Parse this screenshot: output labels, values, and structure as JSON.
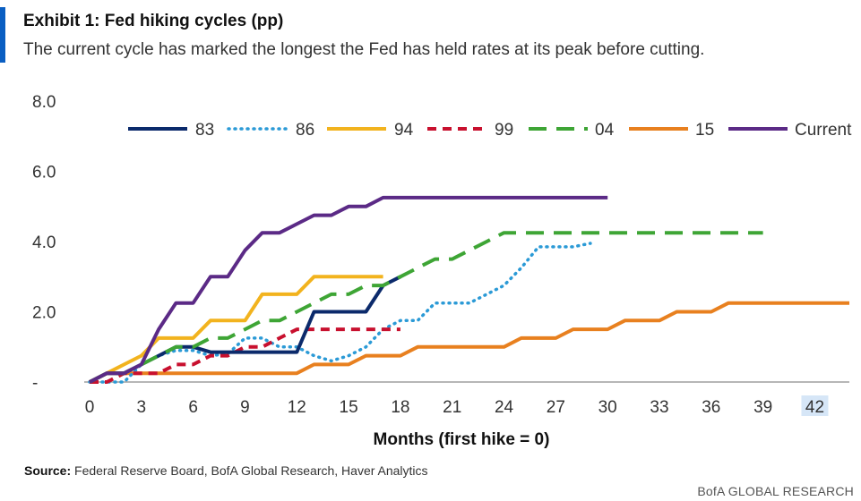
{
  "header": {
    "title": "Exhibit 1: Fed hiking cycles (pp)",
    "subtitle": "The current cycle has marked the longest the Fed has held rates at its peak before cutting."
  },
  "footer": {
    "source_label": "Source:",
    "source_text": " Federal Reserve Board, BofA Global Research, Haver Analytics",
    "brand": "BofA GLOBAL RESEARCH"
  },
  "colors": {
    "accent": "#0a5ec2",
    "highlight": "#d6e6f7"
  },
  "chart_data": {
    "type": "line",
    "title": "Exhibit 1: Fed hiking cycles (pp)",
    "xlabel": "Months  (first hike = 0)",
    "ylabel": "",
    "xlim": [
      0,
      44
    ],
    "ylim": [
      0,
      8
    ],
    "x_ticks": [
      0,
      3,
      6,
      9,
      12,
      15,
      18,
      21,
      24,
      27,
      30,
      33,
      36,
      39,
      42
    ],
    "x_tick_labels": [
      "0",
      "3",
      "6",
      "9",
      "12",
      "15",
      "18",
      "21",
      "24",
      "27",
      "30",
      "33",
      "36",
      "39",
      "42"
    ],
    "highlighted_x_tick": "42",
    "y_ticks": [
      0,
      2,
      4,
      6,
      8
    ],
    "y_tick_labels": [
      "-",
      "2.0",
      "4.0",
      "6.0",
      "8.0"
    ],
    "grid": false,
    "legend_position": "top",
    "series": [
      {
        "name": "83",
        "color": "#0b2a6b",
        "dash": "solid",
        "points": [
          [
            0,
            0
          ],
          [
            1,
            0.25
          ],
          [
            2,
            0.25
          ],
          [
            3,
            0.5
          ],
          [
            4,
            0.75
          ],
          [
            5,
            1.0
          ],
          [
            6,
            1.0
          ],
          [
            7,
            0.85
          ],
          [
            8,
            0.85
          ],
          [
            9,
            0.85
          ],
          [
            10,
            0.85
          ],
          [
            11,
            0.85
          ],
          [
            12,
            0.85
          ],
          [
            13,
            2.0
          ],
          [
            14,
            2.0
          ],
          [
            15,
            2.0
          ],
          [
            16,
            2.0
          ],
          [
            17,
            2.75
          ],
          [
            18,
            3.0
          ]
        ]
      },
      {
        "name": "86",
        "color": "#2b9ad6",
        "dash": "dotted",
        "points": [
          [
            0,
            0
          ],
          [
            1,
            0.0
          ],
          [
            2,
            0.0
          ],
          [
            3,
            0.5
          ],
          [
            4,
            0.75
          ],
          [
            5,
            0.9
          ],
          [
            6,
            0.9
          ],
          [
            7,
            0.75
          ],
          [
            8,
            0.8
          ],
          [
            9,
            1.25
          ],
          [
            10,
            1.25
          ],
          [
            11,
            1.0
          ],
          [
            12,
            1.0
          ],
          [
            13,
            0.75
          ],
          [
            14,
            0.6
          ],
          [
            15,
            0.75
          ],
          [
            16,
            1.0
          ],
          [
            17,
            1.5
          ],
          [
            18,
            1.75
          ],
          [
            19,
            1.75
          ],
          [
            20,
            2.25
          ],
          [
            21,
            2.25
          ],
          [
            22,
            2.25
          ],
          [
            23,
            2.5
          ],
          [
            24,
            2.75
          ],
          [
            25,
            3.25
          ],
          [
            26,
            3.85
          ],
          [
            27,
            3.85
          ],
          [
            28,
            3.85
          ],
          [
            29,
            3.95
          ]
        ]
      },
      {
        "name": "94",
        "color": "#f2b31e",
        "dash": "solid",
        "points": [
          [
            0,
            0
          ],
          [
            1,
            0.25
          ],
          [
            2,
            0.5
          ],
          [
            3,
            0.75
          ],
          [
            4,
            1.25
          ],
          [
            5,
            1.25
          ],
          [
            6,
            1.25
          ],
          [
            7,
            1.75
          ],
          [
            8,
            1.75
          ],
          [
            9,
            1.75
          ],
          [
            10,
            2.5
          ],
          [
            11,
            2.5
          ],
          [
            12,
            2.5
          ],
          [
            13,
            3.0
          ],
          [
            14,
            3.0
          ],
          [
            15,
            3.0
          ],
          [
            16,
            3.0
          ],
          [
            17,
            3.0
          ]
        ]
      },
      {
        "name": "99",
        "color": "#c8102e",
        "dash": "dashed",
        "points": [
          [
            0,
            0
          ],
          [
            1,
            0.0
          ],
          [
            2,
            0.25
          ],
          [
            3,
            0.25
          ],
          [
            4,
            0.25
          ],
          [
            5,
            0.5
          ],
          [
            6,
            0.5
          ],
          [
            7,
            0.75
          ],
          [
            8,
            0.75
          ],
          [
            9,
            1.0
          ],
          [
            10,
            1.0
          ],
          [
            11,
            1.25
          ],
          [
            12,
            1.5
          ],
          [
            13,
            1.5
          ],
          [
            14,
            1.5
          ],
          [
            15,
            1.5
          ],
          [
            16,
            1.5
          ],
          [
            17,
            1.5
          ],
          [
            18,
            1.5
          ]
        ]
      },
      {
        "name": "04",
        "color": "#3ea535",
        "dash": "longdash",
        "points": [
          [
            0,
            0
          ],
          [
            1,
            0.25
          ],
          [
            2,
            0.25
          ],
          [
            3,
            0.5
          ],
          [
            4,
            0.75
          ],
          [
            5,
            1.0
          ],
          [
            6,
            1.0
          ],
          [
            7,
            1.25
          ],
          [
            8,
            1.25
          ],
          [
            9,
            1.5
          ],
          [
            10,
            1.75
          ],
          [
            11,
            1.75
          ],
          [
            12,
            2.0
          ],
          [
            13,
            2.25
          ],
          [
            14,
            2.5
          ],
          [
            15,
            2.5
          ],
          [
            16,
            2.75
          ],
          [
            17,
            2.75
          ],
          [
            18,
            3.0
          ],
          [
            19,
            3.25
          ],
          [
            20,
            3.5
          ],
          [
            21,
            3.5
          ],
          [
            22,
            3.75
          ],
          [
            23,
            4.0
          ],
          [
            24,
            4.25
          ],
          [
            25,
            4.25
          ],
          [
            26,
            4.25
          ],
          [
            27,
            4.25
          ],
          [
            28,
            4.25
          ],
          [
            29,
            4.25
          ],
          [
            30,
            4.25
          ],
          [
            31,
            4.25
          ],
          [
            32,
            4.25
          ],
          [
            33,
            4.25
          ],
          [
            34,
            4.25
          ],
          [
            35,
            4.25
          ],
          [
            36,
            4.25
          ],
          [
            37,
            4.25
          ],
          [
            38,
            4.25
          ],
          [
            39,
            4.25
          ]
        ]
      },
      {
        "name": "15",
        "color": "#e8801f",
        "dash": "solid",
        "points": [
          [
            0,
            0
          ],
          [
            1,
            0.25
          ],
          [
            2,
            0.25
          ],
          [
            12,
            0.25
          ],
          [
            13,
            0.5
          ],
          [
            14,
            0.5
          ],
          [
            15,
            0.5
          ],
          [
            16,
            0.75
          ],
          [
            17,
            0.75
          ],
          [
            18,
            0.75
          ],
          [
            19,
            1.0
          ],
          [
            20,
            1.0
          ],
          [
            21,
            1.0
          ],
          [
            22,
            1.0
          ],
          [
            23,
            1.0
          ],
          [
            24,
            1.0
          ],
          [
            25,
            1.25
          ],
          [
            26,
            1.25
          ],
          [
            27,
            1.25
          ],
          [
            28,
            1.5
          ],
          [
            29,
            1.5
          ],
          [
            30,
            1.5
          ],
          [
            31,
            1.75
          ],
          [
            32,
            1.75
          ],
          [
            33,
            1.75
          ],
          [
            34,
            2.0
          ],
          [
            35,
            2.0
          ],
          [
            36,
            2.0
          ],
          [
            37,
            2.25
          ],
          [
            38,
            2.25
          ],
          [
            44,
            2.25
          ]
        ]
      },
      {
        "name": "Current",
        "color": "#5b2a86",
        "dash": "solid",
        "points": [
          [
            0,
            0
          ],
          [
            1,
            0.25
          ],
          [
            2,
            0.25
          ],
          [
            3,
            0.5
          ],
          [
            4,
            1.5
          ],
          [
            5,
            2.25
          ],
          [
            6,
            2.25
          ],
          [
            7,
            3.0
          ],
          [
            8,
            3.0
          ],
          [
            9,
            3.75
          ],
          [
            10,
            4.25
          ],
          [
            11,
            4.25
          ],
          [
            12,
            4.5
          ],
          [
            13,
            4.75
          ],
          [
            14,
            4.75
          ],
          [
            15,
            5.0
          ],
          [
            16,
            5.0
          ],
          [
            17,
            5.25
          ],
          [
            18,
            5.25
          ],
          [
            30,
            5.25
          ]
        ]
      }
    ]
  }
}
